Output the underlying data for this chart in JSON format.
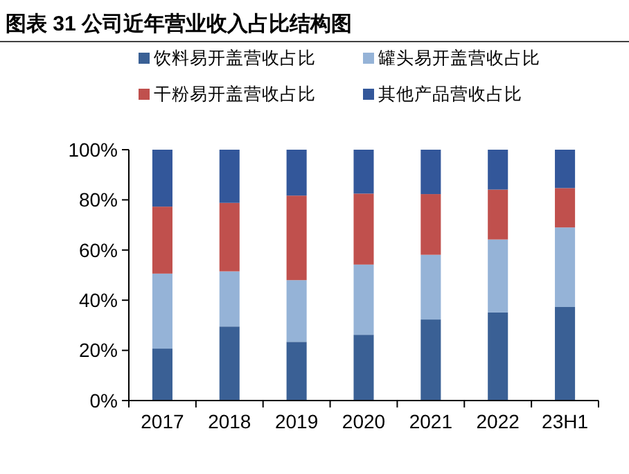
{
  "chart_data": {
    "type": "bar",
    "stacked": true,
    "title": "图表 31 公司近年营业收入占比结构图",
    "categories": [
      "2017",
      "2018",
      "2019",
      "2020",
      "2021",
      "2022",
      "23H1"
    ],
    "series": [
      {
        "name": "饮料易开盖营收占比",
        "color": "#3a6095",
        "values": [
          20.7,
          29.5,
          23.4,
          26.2,
          32.3,
          35.1,
          37.3
        ]
      },
      {
        "name": "罐头易开盖营收占比",
        "color": "#95b3d7",
        "values": [
          29.9,
          22.0,
          24.6,
          28.0,
          25.8,
          29.1,
          31.7
        ]
      },
      {
        "name": "干粉易开盖营收占比",
        "color": "#c0504d",
        "values": [
          26.7,
          27.3,
          33.7,
          28.3,
          24.2,
          19.9,
          15.7
        ]
      },
      {
        "name": "其他产品营收占比",
        "color": "#33579a",
        "values": [
          22.7,
          21.2,
          18.3,
          17.5,
          17.7,
          15.9,
          15.3
        ]
      }
    ],
    "ylim": [
      0,
      100
    ],
    "yticks": [
      {
        "value": 0,
        "label": "0%"
      },
      {
        "value": 20,
        "label": "20%"
      },
      {
        "value": 40,
        "label": "40%"
      },
      {
        "value": 60,
        "label": "60%"
      },
      {
        "value": 80,
        "label": "80%"
      },
      {
        "value": 100,
        "label": "100%"
      }
    ],
    "grid": false,
    "legend": "top"
  }
}
